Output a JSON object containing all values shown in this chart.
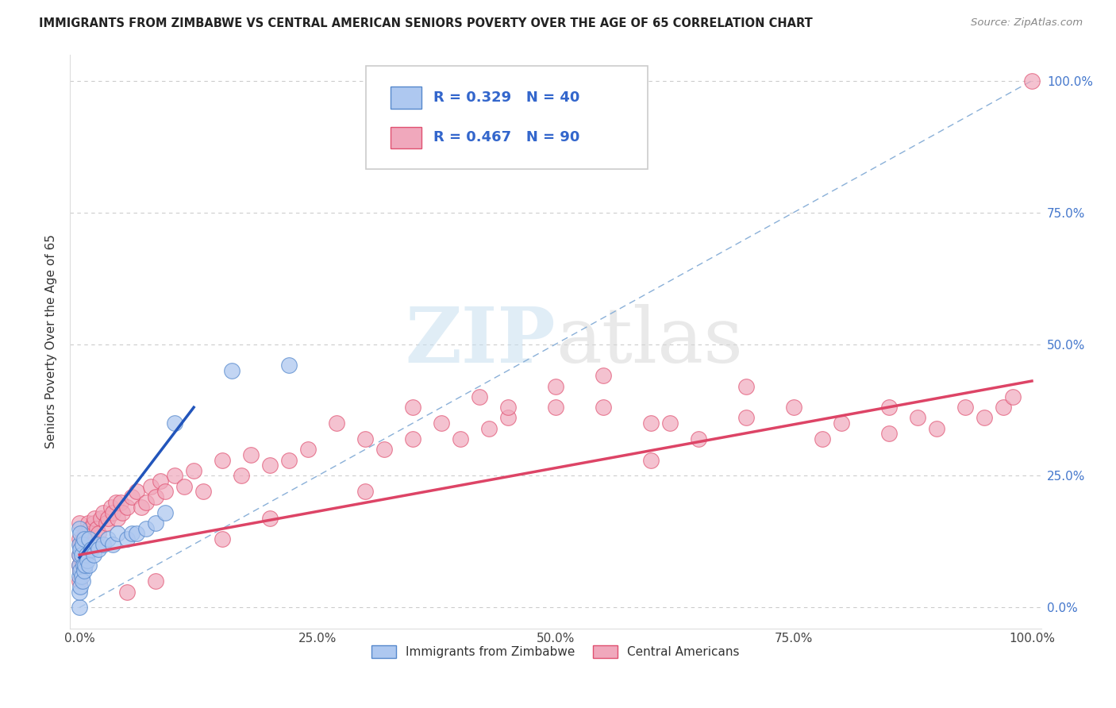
{
  "title": "IMMIGRANTS FROM ZIMBABWE VS CENTRAL AMERICAN SENIORS POVERTY OVER THE AGE OF 65 CORRELATION CHART",
  "source": "Source: ZipAtlas.com",
  "ylabel": "Seniors Poverty Over the Age of 65",
  "xlabel": "",
  "watermark_zip": "ZIP",
  "watermark_atlas": "atlas",
  "legend_label1": "Immigrants from Zimbabwe",
  "legend_label2": "Central Americans",
  "R1": 0.329,
  "N1": 40,
  "R2": 0.467,
  "N2": 90,
  "color1_fill": "#aec8f0",
  "color2_fill": "#f0a8bc",
  "color1_edge": "#5588cc",
  "color2_edge": "#e05070",
  "line1_color": "#2255bb",
  "line2_color": "#dd4466",
  "dashed_line_color": "#8ab0d8",
  "background_color": "#ffffff",
  "grid_color": "#cccccc",
  "title_color": "#222222",
  "axis_label_color": "#333333",
  "right_tick_color": "#4477cc",
  "x_ticks": [
    0.0,
    0.25,
    0.5,
    0.75,
    1.0
  ],
  "x_tick_labels": [
    "0.0%",
    "25.0%",
    "50.0%",
    "75.0%",
    "100.0%"
  ],
  "y_ticks": [
    0.0,
    0.25,
    0.5,
    0.75,
    1.0
  ],
  "y_tick_labels": [
    "0.0%",
    "25.0%",
    "50.0%",
    "75.0%",
    "100.0%"
  ],
  "zim_x": [
    0.0,
    0.0,
    0.0,
    0.0,
    0.0,
    0.0,
    0.0,
    0.001,
    0.001,
    0.001,
    0.001,
    0.002,
    0.002,
    0.003,
    0.003,
    0.004,
    0.005,
    0.005,
    0.006,
    0.007,
    0.008,
    0.01,
    0.01,
    0.012,
    0.015,
    0.018,
    0.02,
    0.025,
    0.03,
    0.035,
    0.04,
    0.05,
    0.055,
    0.06,
    0.07,
    0.08,
    0.09,
    0.1,
    0.16,
    0.22
  ],
  "zim_y": [
    0.0,
    0.03,
    0.06,
    0.08,
    0.1,
    0.12,
    0.15,
    0.04,
    0.07,
    0.11,
    0.14,
    0.06,
    0.1,
    0.05,
    0.12,
    0.08,
    0.07,
    0.13,
    0.08,
    0.1,
    0.09,
    0.08,
    0.13,
    0.11,
    0.1,
    0.12,
    0.11,
    0.12,
    0.13,
    0.12,
    0.14,
    0.13,
    0.14,
    0.14,
    0.15,
    0.16,
    0.18,
    0.35,
    0.45,
    0.46
  ],
  "ca_x": [
    0.0,
    0.0,
    0.0,
    0.0,
    0.0,
    0.001,
    0.001,
    0.002,
    0.003,
    0.004,
    0.005,
    0.006,
    0.007,
    0.008,
    0.009,
    0.01,
    0.011,
    0.012,
    0.013,
    0.015,
    0.016,
    0.018,
    0.02,
    0.022,
    0.025,
    0.028,
    0.03,
    0.033,
    0.035,
    0.038,
    0.04,
    0.043,
    0.045,
    0.05,
    0.055,
    0.06,
    0.065,
    0.07,
    0.075,
    0.08,
    0.085,
    0.09,
    0.1,
    0.11,
    0.12,
    0.13,
    0.15,
    0.17,
    0.18,
    0.2,
    0.22,
    0.24,
    0.27,
    0.3,
    0.32,
    0.35,
    0.38,
    0.4,
    0.43,
    0.45,
    0.5,
    0.55,
    0.6,
    0.65,
    0.7,
    0.75,
    0.8,
    0.85,
    0.88,
    0.9,
    0.93,
    0.95,
    0.97,
    0.98,
    1.0,
    0.3,
    0.2,
    0.15,
    0.08,
    0.05,
    0.35,
    0.42,
    0.55,
    0.62,
    0.7,
    0.78,
    0.85,
    0.5,
    0.6,
    0.45
  ],
  "ca_y": [
    0.05,
    0.08,
    0.1,
    0.13,
    0.16,
    0.07,
    0.12,
    0.09,
    0.13,
    0.11,
    0.12,
    0.14,
    0.11,
    0.14,
    0.16,
    0.13,
    0.15,
    0.14,
    0.12,
    0.16,
    0.17,
    0.15,
    0.14,
    0.17,
    0.18,
    0.16,
    0.17,
    0.19,
    0.18,
    0.2,
    0.17,
    0.2,
    0.18,
    0.19,
    0.21,
    0.22,
    0.19,
    0.2,
    0.23,
    0.21,
    0.24,
    0.22,
    0.25,
    0.23,
    0.26,
    0.22,
    0.28,
    0.25,
    0.29,
    0.27,
    0.28,
    0.3,
    0.35,
    0.32,
    0.3,
    0.38,
    0.35,
    0.32,
    0.34,
    0.36,
    0.38,
    0.38,
    0.35,
    0.32,
    0.36,
    0.38,
    0.35,
    0.33,
    0.36,
    0.34,
    0.38,
    0.36,
    0.38,
    0.4,
    1.0,
    0.22,
    0.17,
    0.13,
    0.05,
    0.03,
    0.32,
    0.4,
    0.44,
    0.35,
    0.42,
    0.32,
    0.38,
    0.42,
    0.28,
    0.38
  ]
}
